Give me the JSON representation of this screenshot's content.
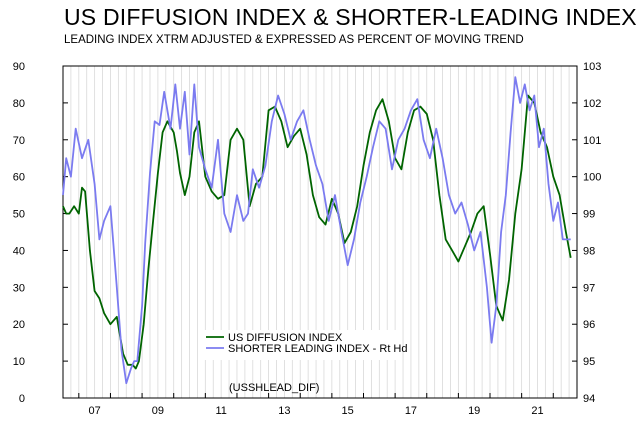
{
  "chart_data": {
    "type": "line",
    "title": "US DIFFUSION INDEX & SHORTER-LEADING INDEX",
    "subtitle": "LEADING INDEX XTRM ADJUSTED & EXPRESSED AS PERCENT OF MOVING TREND",
    "x_tick_labels": [
      "07",
      "09",
      "11",
      "13",
      "15",
      "17",
      "19",
      "21"
    ],
    "x_tick_years": [
      2007,
      2009,
      2011,
      2013,
      2015,
      2017,
      2019,
      2021
    ],
    "xlim": [
      2006.5,
      2022.75
    ],
    "left_axis": {
      "ylim": [
        0,
        90
      ],
      "ticks": [
        0,
        10,
        20,
        30,
        40,
        50,
        60,
        70,
        80,
        90
      ]
    },
    "right_axis": {
      "ylim": [
        94,
        103
      ],
      "ticks": [
        94,
        95,
        96,
        97,
        98,
        99,
        100,
        101,
        102,
        103
      ]
    },
    "series": [
      {
        "name": "US DIFFUSION INDEX",
        "axis": "left",
        "color": "#006400",
        "x": [
          2006.5,
          2006.6,
          2006.7,
          2006.85,
          2007.0,
          2007.1,
          2007.2,
          2007.35,
          2007.5,
          2007.65,
          2007.8,
          2008.0,
          2008.2,
          2008.4,
          2008.55,
          2008.7,
          2008.8,
          2008.9,
          2009.05,
          2009.2,
          2009.35,
          2009.5,
          2009.65,
          2009.8,
          2010.0,
          2010.1,
          2010.2,
          2010.35,
          2010.5,
          2010.65,
          2010.8,
          2011.0,
          2011.2,
          2011.4,
          2011.6,
          2011.8,
          2012.0,
          2012.2,
          2012.4,
          2012.6,
          2012.8,
          2013.0,
          2013.2,
          2013.4,
          2013.6,
          2013.8,
          2014.0,
          2014.2,
          2014.4,
          2014.6,
          2014.8,
          2015.0,
          2015.2,
          2015.4,
          2015.6,
          2015.8,
          2016.0,
          2016.2,
          2016.4,
          2016.6,
          2016.8,
          2017.0,
          2017.2,
          2017.4,
          2017.6,
          2017.8,
          2018.0,
          2018.2,
          2018.4,
          2018.6,
          2018.8,
          2019.0,
          2019.2,
          2019.4,
          2019.6,
          2019.8,
          2020.0,
          2020.2,
          2020.4,
          2020.6,
          2020.8,
          2021.0,
          2021.2,
          2021.4,
          2021.6,
          2021.8,
          2022.0,
          2022.2,
          2022.4,
          2022.55
        ],
        "values": [
          52,
          50,
          50,
          52,
          50,
          57,
          56,
          40,
          29,
          27,
          23,
          20,
          22,
          12,
          9,
          9,
          8,
          10,
          20,
          35,
          48,
          61,
          72,
          75,
          72,
          67,
          61,
          55,
          60,
          72,
          75,
          60,
          56,
          54,
          55,
          70,
          73,
          70,
          52,
          58,
          60,
          78,
          79,
          75,
          68,
          71,
          73,
          66,
          55,
          49,
          47,
          54,
          50,
          42,
          45,
          52,
          63,
          72,
          78,
          81,
          75,
          65,
          62,
          72,
          78,
          79,
          77,
          70,
          55,
          43,
          40,
          37,
          41,
          45,
          50,
          52,
          39,
          25,
          21,
          32,
          50,
          62,
          82,
          80,
          72,
          68,
          60,
          55,
          45,
          38
        ]
      },
      {
        "name": "SHORTER LEADING INDEX - Rt Hd",
        "axis": "right",
        "color": "#7b7bf0",
        "x": [
          2006.5,
          2006.6,
          2006.75,
          2006.9,
          2007.1,
          2007.3,
          2007.5,
          2007.65,
          2007.8,
          2008.0,
          2008.2,
          2008.35,
          2008.5,
          2008.65,
          2008.75,
          2008.85,
          2009.0,
          2009.1,
          2009.25,
          2009.4,
          2009.55,
          2009.7,
          2009.9,
          2010.05,
          2010.2,
          2010.35,
          2010.5,
          2010.65,
          2010.8,
          2011.0,
          2011.2,
          2011.4,
          2011.6,
          2011.8,
          2012.0,
          2012.2,
          2012.35,
          2012.5,
          2012.7,
          2012.9,
          2013.1,
          2013.3,
          2013.5,
          2013.7,
          2013.9,
          2014.1,
          2014.3,
          2014.5,
          2014.7,
          2014.9,
          2015.1,
          2015.3,
          2015.5,
          2015.7,
          2015.9,
          2016.1,
          2016.3,
          2016.5,
          2016.7,
          2016.9,
          2017.1,
          2017.3,
          2017.5,
          2017.7,
          2017.9,
          2018.1,
          2018.3,
          2018.5,
          2018.7,
          2018.9,
          2019.1,
          2019.3,
          2019.5,
          2019.7,
          2019.9,
          2020.05,
          2020.2,
          2020.35,
          2020.5,
          2020.65,
          2020.8,
          2020.95,
          2021.1,
          2021.25,
          2021.4,
          2021.55,
          2021.7,
          2021.85,
          2022.0,
          2022.15,
          2022.3,
          2022.45,
          2022.55
        ],
        "values": [
          99.5,
          100.5,
          100.0,
          101.3,
          100.5,
          101.0,
          99.8,
          98.3,
          98.8,
          99.2,
          97.0,
          95.3,
          94.4,
          94.8,
          95.0,
          95.0,
          96.5,
          98.2,
          100.1,
          101.5,
          101.4,
          102.3,
          101.3,
          102.5,
          101.3,
          102.3,
          100.6,
          102.5,
          100.8,
          100.2,
          99.7,
          101.0,
          99.0,
          98.5,
          99.5,
          98.8,
          99.0,
          100.2,
          99.7,
          100.3,
          101.5,
          102.2,
          101.7,
          101.0,
          101.5,
          101.8,
          101.0,
          100.3,
          99.8,
          98.8,
          99.5,
          98.5,
          97.6,
          98.3,
          99.3,
          100.0,
          100.8,
          101.5,
          101.3,
          100.2,
          101.0,
          101.3,
          101.8,
          102.1,
          101.0,
          100.5,
          101.3,
          100.5,
          99.5,
          99.0,
          99.3,
          98.7,
          98.0,
          98.5,
          97.0,
          95.5,
          96.5,
          98.5,
          99.5,
          101.2,
          102.7,
          102.0,
          102.5,
          101.8,
          102.2,
          100.8,
          101.3,
          99.8,
          98.8,
          99.3,
          98.3,
          98.3,
          98.3
        ]
      }
    ],
    "legend": [
      {
        "label": "US DIFFUSION INDEX",
        "color": "#006400"
      },
      {
        "label": "SHORTER LEADING INDEX - Rt Hd",
        "color": "#7b7bf0"
      }
    ],
    "annotation": "(USSHLEAD_DIF)"
  }
}
